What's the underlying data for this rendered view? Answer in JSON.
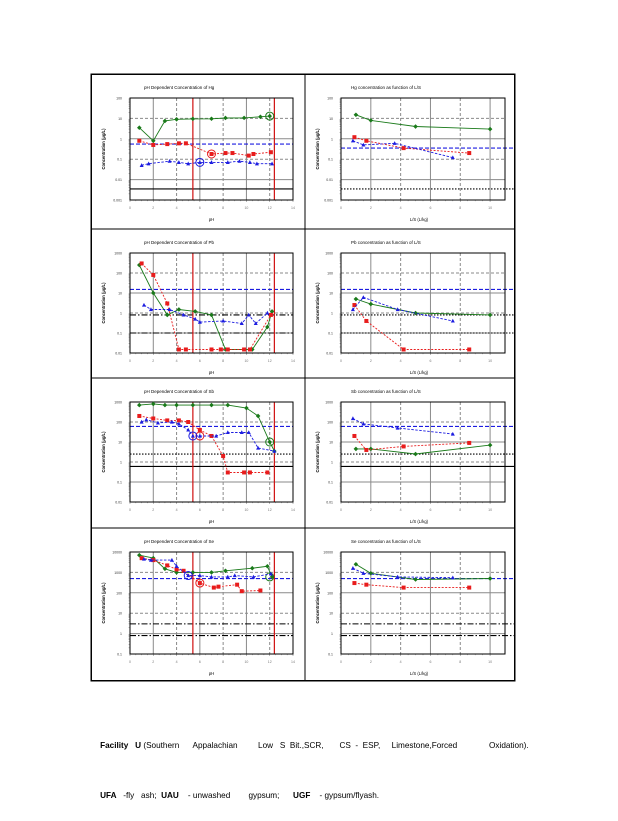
{
  "caption": {
    "line1": [
      {
        "text": "Facility",
        "bold": true
      },
      {
        "text": "   U ",
        "bold": true
      },
      {
        "text": "(Southern      Appalachian         Low   S  Bit.,SCR,       CS  -  ESP,     Limestone,Forced              Oxidation).",
        "bold": false
      }
    ],
    "line2": [
      {
        "text": "UFA",
        "bold": true
      },
      {
        "text": "   -fly   ash;  ",
        "bold": false
      },
      {
        "text": "UAU",
        "bold": true
      },
      {
        "text": "    - unwashed        gypsum;      ",
        "bold": false
      },
      {
        "text": "UGF",
        "bold": true
      },
      {
        "text": "    - gypsum/flyash.",
        "bold": false
      }
    ]
  },
  "colors": {
    "UFA": "#1a7a1a",
    "UAU": "#e81c1c",
    "UGF": "#1c1ce0",
    "ph_bound": "#d01010",
    "grid": "#8a8a8a"
  },
  "chart_data": [
    {
      "panel": "row1-left",
      "type": "line",
      "title": "pH Dependent Concentration of Hg",
      "xlabel": "pH",
      "ylabel": "Concentration (µg/L)",
      "xlim": [
        0,
        14
      ],
      "xticks": [
        "0",
        "2",
        "4",
        "6",
        "8",
        "10",
        "12",
        "14"
      ],
      "ylog": true,
      "ylim": [
        0.001,
        100
      ],
      "yticks": [
        "0.001",
        "0.01",
        "0.1",
        "1",
        "10",
        "100"
      ],
      "ph_bounds": [
        5.4,
        12.4
      ],
      "ref_lines": [
        {
          "y": 0.55,
          "style": "dash",
          "color": "#1c1ce0"
        },
        {
          "y": 0.0035,
          "style": "solid",
          "color": "#000000"
        }
      ],
      "series": [
        {
          "name": "UFA",
          "marker": "diamond",
          "x": [
            0.8,
            2,
            3,
            4,
            5.4,
            7,
            8.2,
            9.8,
            11.2,
            12
          ],
          "y": [
            3.5,
            0.8,
            7.5,
            9,
            9.5,
            9.6,
            10.5,
            10.6,
            12,
            13
          ],
          "natural_ph": {
            "x": 12,
            "y": 13
          }
        },
        {
          "name": "UAU",
          "marker": "square",
          "x": [
            0.8,
            2,
            3.2,
            4.2,
            4.8,
            7,
            8.2,
            8.8,
            10.2,
            10.6,
            12.1
          ],
          "y": [
            0.8,
            0.5,
            0.55,
            0.6,
            0.6,
            0.18,
            0.2,
            0.2,
            0.15,
            0.18,
            0.22
          ],
          "natural_ph": {
            "x": 7,
            "y": 0.18
          }
        },
        {
          "name": "UGF",
          "marker": "triangle",
          "x": [
            1,
            1.6,
            3.4,
            4.2,
            5,
            6,
            7,
            8.4,
            9.4,
            10.3,
            10.9,
            12.2
          ],
          "y": [
            0.05,
            0.06,
            0.08,
            0.07,
            0.06,
            0.07,
            0.07,
            0.07,
            0.08,
            0.07,
            0.06,
            0.06
          ],
          "natural_ph": {
            "x": 6,
            "y": 0.07
          }
        }
      ]
    },
    {
      "panel": "row1-right",
      "type": "line",
      "title": "Hg concentration as function of L/S",
      "xlabel": "L/S (L/kg)",
      "ylabel": "Concentration (µg/L)",
      "xlim": [
        0,
        11
      ],
      "xticks": [
        "0",
        "2",
        "4",
        "6",
        "8",
        "10"
      ],
      "ylog": true,
      "ylim": [
        0.001,
        100
      ],
      "yticks": [
        "0.001",
        "0.01",
        "0.1",
        "1",
        "10",
        "100"
      ],
      "ref_lines": [
        {
          "y": 0.35,
          "style": "dash",
          "color": "#1c1ce0"
        },
        {
          "y": 0.0035,
          "style": "dot",
          "color": "#000000"
        }
      ],
      "series": [
        {
          "name": "UFA",
          "marker": "diamond",
          "x": [
            1,
            2,
            5,
            10
          ],
          "y": [
            15,
            8,
            4,
            3
          ]
        },
        {
          "name": "UAU",
          "marker": "square",
          "x": [
            0.9,
            1.7,
            4.2,
            8.6
          ],
          "y": [
            1.2,
            0.8,
            0.35,
            0.2
          ]
        },
        {
          "name": "UGF",
          "marker": "triangle",
          "x": [
            0.8,
            1.5,
            3.6,
            7.5
          ],
          "y": [
            0.8,
            0.5,
            0.6,
            0.12
          ]
        }
      ]
    },
    {
      "panel": "row2-left",
      "type": "line",
      "title": "pH Dependent Concentration of Pb",
      "xlabel": "pH",
      "ylabel": "Concentration (µg/L)",
      "xlim": [
        0,
        14
      ],
      "xticks": [
        "0",
        "2",
        "4",
        "6",
        "8",
        "10",
        "12",
        "14"
      ],
      "ylog": true,
      "ylim": [
        0.01,
        1000
      ],
      "yticks": [
        "0.01",
        "0.1",
        "1",
        "10",
        "100",
        "1000"
      ],
      "ph_bounds": [
        5.4,
        12.4
      ],
      "ref_lines": [
        {
          "y": 15,
          "style": "dash",
          "color": "#1c1ce0"
        },
        {
          "y": 0.8,
          "style": "dashdot",
          "color": "#000000"
        },
        {
          "y": 0.1,
          "style": "dashdot",
          "color": "#000000"
        }
      ],
      "series": [
        {
          "name": "UFA",
          "marker": "diamond",
          "x": [
            0.8,
            2,
            3.2,
            4.2,
            5.6,
            7,
            8.2,
            10.5,
            11.8,
            12.2
          ],
          "y": [
            250,
            10,
            0.8,
            1.5,
            1.2,
            0.8,
            0.015,
            0.015,
            0.2,
            1.2
          ]
        },
        {
          "name": "UAU",
          "marker": "square",
          "x": [
            1,
            2,
            3.2,
            4.2,
            4.8,
            7,
            7.8,
            8.4,
            9.8,
            10.3,
            12.1
          ],
          "y": [
            300,
            80,
            3,
            0.015,
            0.015,
            0.015,
            0.015,
            0.015,
            0.015,
            0.015,
            0.8
          ]
        },
        {
          "name": "UGF",
          "marker": "triangle",
          "x": [
            1.2,
            1.8,
            3.4,
            4.6,
            5.6,
            6,
            8,
            9.6,
            10.2,
            10.8,
            11.8
          ],
          "y": [
            2.5,
            1.5,
            1.5,
            0.8,
            0.5,
            0.35,
            0.4,
            0.3,
            0.8,
            0.3,
            1
          ]
        }
      ]
    },
    {
      "panel": "row2-right",
      "type": "line",
      "title": "Pb concentration as function of L/S",
      "xlabel": "L/S (L/kg)",
      "ylabel": "Concentration (µg/L)",
      "xlim": [
        0,
        11
      ],
      "xticks": [
        "0",
        "2",
        "4",
        "6",
        "8",
        "10"
      ],
      "ylog": true,
      "ylim": [
        0.01,
        1000
      ],
      "yticks": [
        "0.01",
        "0.1",
        "1",
        "10",
        "100",
        "1000"
      ],
      "ref_lines": [
        {
          "y": 15,
          "style": "dash",
          "color": "#1c1ce0"
        },
        {
          "y": 0.8,
          "style": "dot",
          "color": "#000000"
        },
        {
          "y": 0.1,
          "style": "dot",
          "color": "#000000"
        }
      ],
      "series": [
        {
          "name": "UFA",
          "marker": "diamond",
          "x": [
            1,
            2,
            5,
            10
          ],
          "y": [
            5,
            2.8,
            1,
            0.8
          ]
        },
        {
          "name": "UAU",
          "marker": "square",
          "x": [
            0.9,
            1.7,
            4.2,
            8.6
          ],
          "y": [
            2.5,
            0.4,
            0.015,
            0.015
          ]
        },
        {
          "name": "UGF",
          "marker": "triangle",
          "x": [
            0.8,
            1.5,
            3.8,
            7.5
          ],
          "y": [
            1.5,
            6,
            1.5,
            0.4
          ]
        }
      ]
    },
    {
      "panel": "row3-left",
      "type": "line",
      "title": "pH Dependent Concentration of Sb",
      "xlabel": "pH",
      "ylabel": "Concentration (µg/L)",
      "xlim": [
        0,
        14
      ],
      "xticks": [
        "0",
        "2",
        "4",
        "6",
        "8",
        "10",
        "12",
        "14"
      ],
      "ylog": true,
      "ylim": [
        0.01,
        1000
      ],
      "yticks": [
        "0.01",
        "0.1",
        "1",
        "10",
        "100",
        "1000"
      ],
      "ph_bounds": [
        5.4,
        12.4
      ],
      "ref_lines": [
        {
          "y": 60,
          "style": "dash",
          "color": "#1c1ce0"
        },
        {
          "y": 2.5,
          "style": "dot",
          "color": "#000000"
        },
        {
          "y": 0.6,
          "style": "solid",
          "color": "#000000"
        }
      ],
      "series": [
        {
          "name": "UFA",
          "marker": "diamond",
          "x": [
            0.8,
            2,
            3,
            4,
            5.4,
            7,
            8.4,
            10,
            11,
            12,
            12.4
          ],
          "y": [
            700,
            800,
            700,
            700,
            700,
            700,
            700,
            500,
            200,
            10,
            3.5
          ],
          "natural_ph": {
            "x": 12,
            "y": 10
          }
        },
        {
          "name": "UAU",
          "marker": "square",
          "x": [
            0.8,
            2,
            3.2,
            4.2,
            5,
            6,
            7,
            8,
            8.4,
            9.8,
            10.3,
            11.8
          ],
          "y": [
            200,
            150,
            120,
            120,
            100,
            40,
            20,
            2,
            0.3,
            0.3,
            0.3,
            0.3
          ],
          "natural_ph": {
            "x": 6,
            "y": 20
          }
        },
        {
          "name": "UGF",
          "marker": "triangle",
          "x": [
            1,
            1.4,
            2.4,
            3.6,
            4.2,
            5,
            5.4,
            6,
            7.4,
            8.4,
            9.6,
            10.2,
            11,
            12.4
          ],
          "y": [
            100,
            130,
            90,
            100,
            80,
            40,
            20,
            20,
            20,
            30,
            30,
            30,
            5,
            3.5
          ],
          "natural_ph": {
            "x": 5.4,
            "y": 20
          }
        }
      ]
    },
    {
      "panel": "row3-right",
      "type": "line",
      "title": "Sb concentration as function of L/S",
      "xlabel": "L/S (L/kg)",
      "ylabel": "Concentration (µg/L)",
      "xlim": [
        0,
        11
      ],
      "xticks": [
        "0",
        "2",
        "4",
        "6",
        "8",
        "10"
      ],
      "ylog": true,
      "ylim": [
        0.01,
        1000
      ],
      "yticks": [
        "0.01",
        "0.1",
        "1",
        "10",
        "100",
        "1000"
      ],
      "ref_lines": [
        {
          "y": 60,
          "style": "dash",
          "color": "#1c1ce0"
        },
        {
          "y": 2.5,
          "style": "dot",
          "color": "#000000"
        },
        {
          "y": 0.6,
          "style": "solid",
          "color": "#000000"
        }
      ],
      "series": [
        {
          "name": "UFA",
          "marker": "diamond",
          "x": [
            1,
            2,
            5,
            10
          ],
          "y": [
            4.5,
            4.5,
            2.5,
            7
          ]
        },
        {
          "name": "UAU",
          "marker": "square",
          "x": [
            0.9,
            1.7,
            4.2,
            8.6
          ],
          "y": [
            20,
            4,
            6,
            9
          ]
        },
        {
          "name": "UGF",
          "marker": "triangle",
          "x": [
            0.8,
            1.5,
            3.8,
            7.5
          ],
          "y": [
            150,
            80,
            50,
            25
          ]
        }
      ]
    },
    {
      "panel": "row4-left",
      "type": "line",
      "title": "pH Dependent Concentration of Se",
      "xlabel": "pH",
      "ylabel": "Concentration (µg/L)",
      "xlim": [
        0,
        14
      ],
      "xticks": [
        "0",
        "2",
        "4",
        "6",
        "8",
        "10",
        "12",
        "14"
      ],
      "ylog": true,
      "ylim": [
        0.1,
        10000
      ],
      "yticks": [
        "0.1",
        "1",
        "10",
        "100",
        "1000",
        "10000"
      ],
      "ph_bounds": [
        5.4,
        12.4
      ],
      "ref_lines": [
        {
          "y": 500,
          "style": "dash",
          "color": "#1c1ce0"
        },
        {
          "y": 3,
          "style": "dashdot",
          "color": "#000000"
        },
        {
          "y": 0.8,
          "style": "dashdot",
          "color": "#000000"
        }
      ],
      "series": [
        {
          "name": "UFA",
          "marker": "diamond",
          "x": [
            0.8,
            2,
            3,
            4,
            5.4,
            7,
            8.2,
            10.5,
            11.8,
            12.2
          ],
          "y": [
            7000,
            5000,
            1500,
            1000,
            1000,
            1000,
            1200,
            1600,
            2000,
            600
          ],
          "natural_ph": {
            "x": 12,
            "y": 600
          }
        },
        {
          "name": "UAU",
          "marker": "square",
          "x": [
            1,
            2,
            3.2,
            4,
            4.6,
            6,
            7.2,
            7.6,
            9.2,
            9.6,
            11.2
          ],
          "y": [
            5000,
            4000,
            2200,
            1400,
            1200,
            300,
            180,
            200,
            250,
            120,
            130
          ],
          "natural_ph": {
            "x": 6,
            "y": 300
          }
        },
        {
          "name": "UGF",
          "marker": "triangle",
          "x": [
            1.2,
            1.8,
            3.6,
            4,
            5,
            6,
            7,
            8.4,
            9,
            10.6,
            12.1
          ],
          "y": [
            4500,
            4000,
            4000,
            2000,
            700,
            700,
            600,
            600,
            700,
            600,
            850
          ],
          "natural_ph": {
            "x": 5,
            "y": 700
          }
        }
      ]
    },
    {
      "panel": "row4-right",
      "type": "line",
      "title": "Se concentration as function of L/S",
      "xlabel": "L/S (L/kg)",
      "ylabel": "Concentration (µg/L)",
      "xlim": [
        0,
        11
      ],
      "xticks": [
        "0",
        "2",
        "4",
        "6",
        "8",
        "10"
      ],
      "ylog": true,
      "ylim": [
        0.1,
        10000
      ],
      "yticks": [
        "0.1",
        "1",
        "10",
        "100",
        "1000",
        "10000"
      ],
      "ref_lines": [
        {
          "y": 500,
          "style": "dash",
          "color": "#1c1ce0"
        },
        {
          "y": 3,
          "style": "dashdot",
          "color": "#000000"
        },
        {
          "y": 0.8,
          "style": "dashdot",
          "color": "#000000"
        }
      ],
      "series": [
        {
          "name": "UFA",
          "marker": "diamond",
          "x": [
            1,
            2,
            5,
            10
          ],
          "y": [
            2500,
            900,
            450,
            500
          ]
        },
        {
          "name": "UAU",
          "marker": "square",
          "x": [
            0.9,
            1.7,
            4.2,
            8.6
          ],
          "y": [
            300,
            250,
            180,
            180
          ]
        },
        {
          "name": "UGF",
          "marker": "triangle",
          "x": [
            0.8,
            1.5,
            3.8,
            7.5
          ],
          "y": [
            1600,
            900,
            600,
            550
          ]
        }
      ]
    }
  ]
}
